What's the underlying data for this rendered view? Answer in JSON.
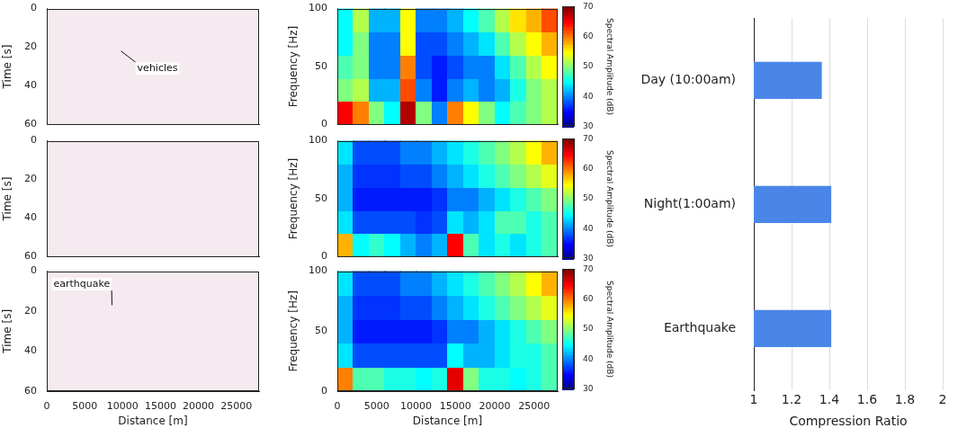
{
  "chart_data": [
    {
      "type": "image",
      "xlim": [
        0,
        28000
      ],
      "xticks": [
        0,
        5000,
        10000,
        15000,
        20000,
        25000
      ],
      "ylim": [
        0,
        60
      ],
      "yticks": [
        0,
        20,
        40,
        60
      ],
      "y_label": "Time [s]",
      "tick_labels": "y",
      "grid": false,
      "annotations": [
        {
          "text": "vehicles",
          "x": 14600,
          "y": 31,
          "arrow_to": [
            9800,
            22
          ]
        }
      ]
    },
    {
      "type": "image",
      "xlim": [
        0,
        28000
      ],
      "xticks": [
        0,
        5000,
        10000,
        15000,
        20000,
        25000
      ],
      "ylim": [
        0,
        60
      ],
      "yticks": [
        0,
        20,
        40,
        60
      ],
      "y_label": "Time [s]",
      "tick_labels": "y",
      "grid": false
    },
    {
      "type": "image",
      "xlim": [
        0,
        28000
      ],
      "xticks": [
        0,
        5000,
        10000,
        15000,
        20000,
        25000
      ],
      "ylim": [
        0,
        60
      ],
      "yticks": [
        0,
        20,
        40,
        60
      ],
      "y_label": "Time [s]",
      "x_label": "Distance [m]",
      "tick_labels": true,
      "grid": false,
      "annotations": [
        {
          "text": "earthquake",
          "x": 4600,
          "y": 6.5,
          "arrow_to": [
            8600,
            17
          ]
        }
      ]
    },
    {
      "type": "heatmap",
      "xlim": [
        0,
        28000
      ],
      "xticks": [
        0,
        5000,
        10000,
        15000,
        20000,
        25000
      ],
      "ylim": [
        0,
        100
      ],
      "yticks": [
        0,
        50,
        100
      ],
      "y_label": "Frequency [Hz]",
      "tick_labels": "y",
      "grid": false,
      "x_edges": [
        0,
        2000,
        4000,
        6000,
        8000,
        10000,
        12000,
        14000,
        16000,
        18000,
        20000,
        22000,
        24000,
        26000,
        28000
      ],
      "y_edges": [
        0,
        20,
        40,
        60,
        80,
        100
      ],
      "cells": [
        [
          65,
          60,
          50,
          45,
          68,
          50,
          40,
          60,
          55,
          50,
          45,
          48,
          50,
          52
        ],
        [
          50,
          52,
          42,
          42,
          62,
          40,
          36,
          40,
          42,
          40,
          42,
          46,
          50,
          52
        ],
        [
          48,
          50,
          40,
          40,
          60,
          38,
          36,
          38,
          40,
          40,
          44,
          48,
          52,
          55
        ],
        [
          45,
          50,
          40,
          40,
          55,
          38,
          38,
          40,
          42,
          44,
          48,
          52,
          55,
          58
        ],
        [
          45,
          52,
          42,
          42,
          55,
          40,
          40,
          42,
          45,
          48,
          52,
          56,
          58,
          62
        ]
      ],
      "colorbar": {
        "range": [
          30,
          70
        ],
        "ticks": [
          30,
          40,
          50,
          60,
          70
        ],
        "label": "Spectral Amplitude (dB)"
      }
    },
    {
      "type": "heatmap",
      "xlim": [
        0,
        28000
      ],
      "xticks": [
        0,
        5000,
        10000,
        15000,
        20000,
        25000
      ],
      "ylim": [
        0,
        100
      ],
      "yticks": [
        0,
        50,
        100
      ],
      "y_label": "Frequency [Hz]",
      "tick_labels": "y",
      "grid": false,
      "x_edges": [
        0,
        2000,
        4000,
        6000,
        8000,
        10000,
        12000,
        14000,
        16000,
        18000,
        20000,
        22000,
        24000,
        26000,
        28000
      ],
      "y_edges": [
        0,
        20,
        40,
        60,
        80,
        100
      ],
      "cells": [
        [
          58,
          45,
          47,
          45,
          42,
          40,
          42,
          65,
          48,
          44,
          46,
          44,
          46,
          48
        ],
        [
          44,
          38,
          38,
          38,
          38,
          37,
          38,
          44,
          42,
          44,
          48,
          48,
          46,
          48
        ],
        [
          42,
          36,
          36,
          36,
          36,
          36,
          37,
          40,
          40,
          42,
          44,
          46,
          48,
          50
        ],
        [
          42,
          37,
          37,
          37,
          38,
          38,
          40,
          42,
          44,
          46,
          48,
          50,
          52,
          54
        ],
        [
          44,
          38,
          38,
          38,
          40,
          40,
          42,
          44,
          46,
          48,
          50,
          52,
          55,
          58
        ]
      ],
      "colorbar": {
        "range": [
          30,
          70
        ],
        "ticks": [
          30,
          40,
          50,
          60,
          70
        ],
        "label": "Spectral Amplitude (dB)"
      }
    },
    {
      "type": "heatmap",
      "xlim": [
        0,
        28000
      ],
      "xticks": [
        0,
        5000,
        10000,
        15000,
        20000,
        25000
      ],
      "ylim": [
        0,
        100
      ],
      "yticks": [
        0,
        50,
        100
      ],
      "y_label": "Frequency [Hz]",
      "x_label": "Distance [m]",
      "tick_labels": true,
      "grid": false,
      "x_edges": [
        0,
        2000,
        4000,
        6000,
        8000,
        10000,
        12000,
        14000,
        16000,
        18000,
        20000,
        22000,
        24000,
        26000,
        28000
      ],
      "y_edges": [
        0,
        20,
        40,
        60,
        80,
        100
      ],
      "cells": [
        [
          60,
          48,
          48,
          46,
          46,
          45,
          46,
          66,
          50,
          46,
          46,
          45,
          46,
          48
        ],
        [
          44,
          38,
          38,
          38,
          38,
          38,
          38,
          45,
          42,
          42,
          44,
          46,
          46,
          48
        ],
        [
          42,
          36,
          36,
          36,
          36,
          36,
          37,
          40,
          40,
          42,
          44,
          46,
          48,
          50
        ],
        [
          42,
          37,
          37,
          37,
          38,
          38,
          40,
          42,
          44,
          46,
          48,
          50,
          52,
          54
        ],
        [
          44,
          38,
          38,
          38,
          40,
          40,
          42,
          44,
          46,
          48,
          50,
          52,
          55,
          58
        ]
      ],
      "colorbar": {
        "range": [
          30,
          70
        ],
        "ticks": [
          30,
          40,
          50,
          60,
          70
        ],
        "label": "Spectral Amplitude (dB)"
      }
    },
    {
      "type": "bar",
      "orientation": "horizontal",
      "categories": [
        "Day (10:00am)",
        "Night(1:00am)",
        "Earthquake"
      ],
      "values": [
        1.36,
        1.41,
        1.41
      ],
      "color": "#4a86e8",
      "xlim": [
        1,
        2
      ],
      "xticks": [
        1,
        1.2,
        1.4,
        1.6,
        1.8,
        2
      ],
      "x_label": "Compression Ratio",
      "grid": true
    }
  ]
}
